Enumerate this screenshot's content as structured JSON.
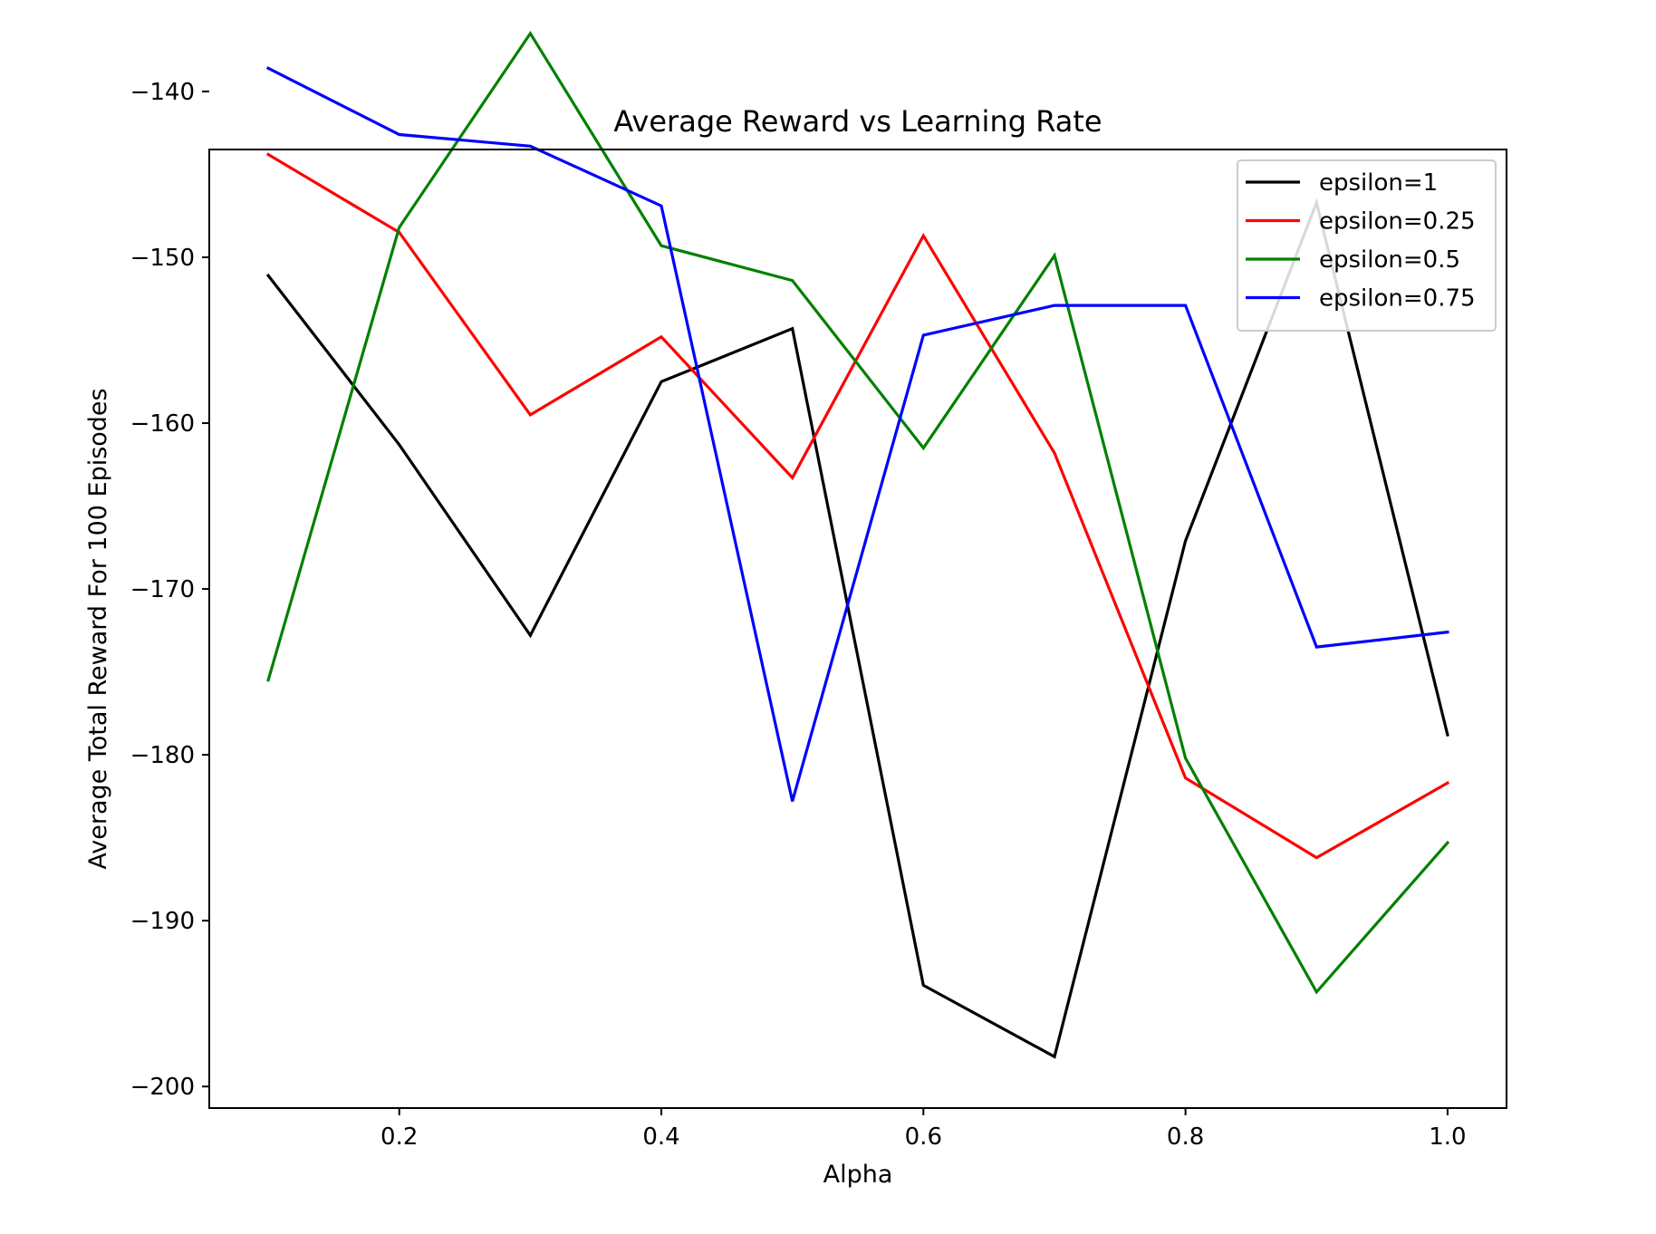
{
  "chart_data": {
    "type": "line",
    "title": "Average Reward vs Learning Rate",
    "xlabel": "Alpha",
    "ylabel": "Average Total Reward For 100 Episodes",
    "x": [
      0.1,
      0.2,
      0.3,
      0.4,
      0.5,
      0.6,
      0.7,
      0.8,
      0.9,
      1.0
    ],
    "xlim": [
      0.055,
      1.045
    ],
    "ylim": [
      -201.3,
      -143.5
    ],
    "xticks": [
      0.2,
      0.4,
      0.6,
      0.8,
      1.0
    ],
    "xtick_labels": [
      "0.2",
      "0.4",
      "0.6",
      "0.8",
      "1.0"
    ],
    "yticks": [
      -140,
      -150,
      -160,
      -170,
      -180,
      -190,
      -200
    ],
    "ytick_labels": [
      "−140",
      "−150",
      "−160",
      "−170",
      "−180",
      "−190",
      "−200"
    ],
    "grid": false,
    "legend_position": "top-right",
    "series": [
      {
        "name": "epsilon=1",
        "color": "#000000",
        "values": [
          -151.1,
          -161.3,
          -172.8,
          -157.5,
          -154.3,
          -193.9,
          -198.2,
          -167.1,
          -146.7,
          -178.8
        ]
      },
      {
        "name": "epsilon=0.25",
        "color": "#ff0000",
        "values": [
          -143.8,
          -148.5,
          -159.5,
          -154.8,
          -163.3,
          -148.7,
          -161.8,
          -181.4,
          -186.2,
          -181.7
        ]
      },
      {
        "name": "epsilon=0.5",
        "color": "#008000",
        "values": [
          -175.5,
          -148.2,
          -136.5,
          -149.3,
          -151.4,
          -161.5,
          -149.9,
          -180.2,
          -194.3,
          -185.3
        ]
      },
      {
        "name": "epsilon=0.75",
        "color": "#0000ff",
        "values": [
          -138.6,
          -142.6,
          -143.3,
          -146.9,
          -182.8,
          -154.7,
          -152.9,
          -152.9,
          -173.5,
          -172.6
        ]
      }
    ]
  }
}
